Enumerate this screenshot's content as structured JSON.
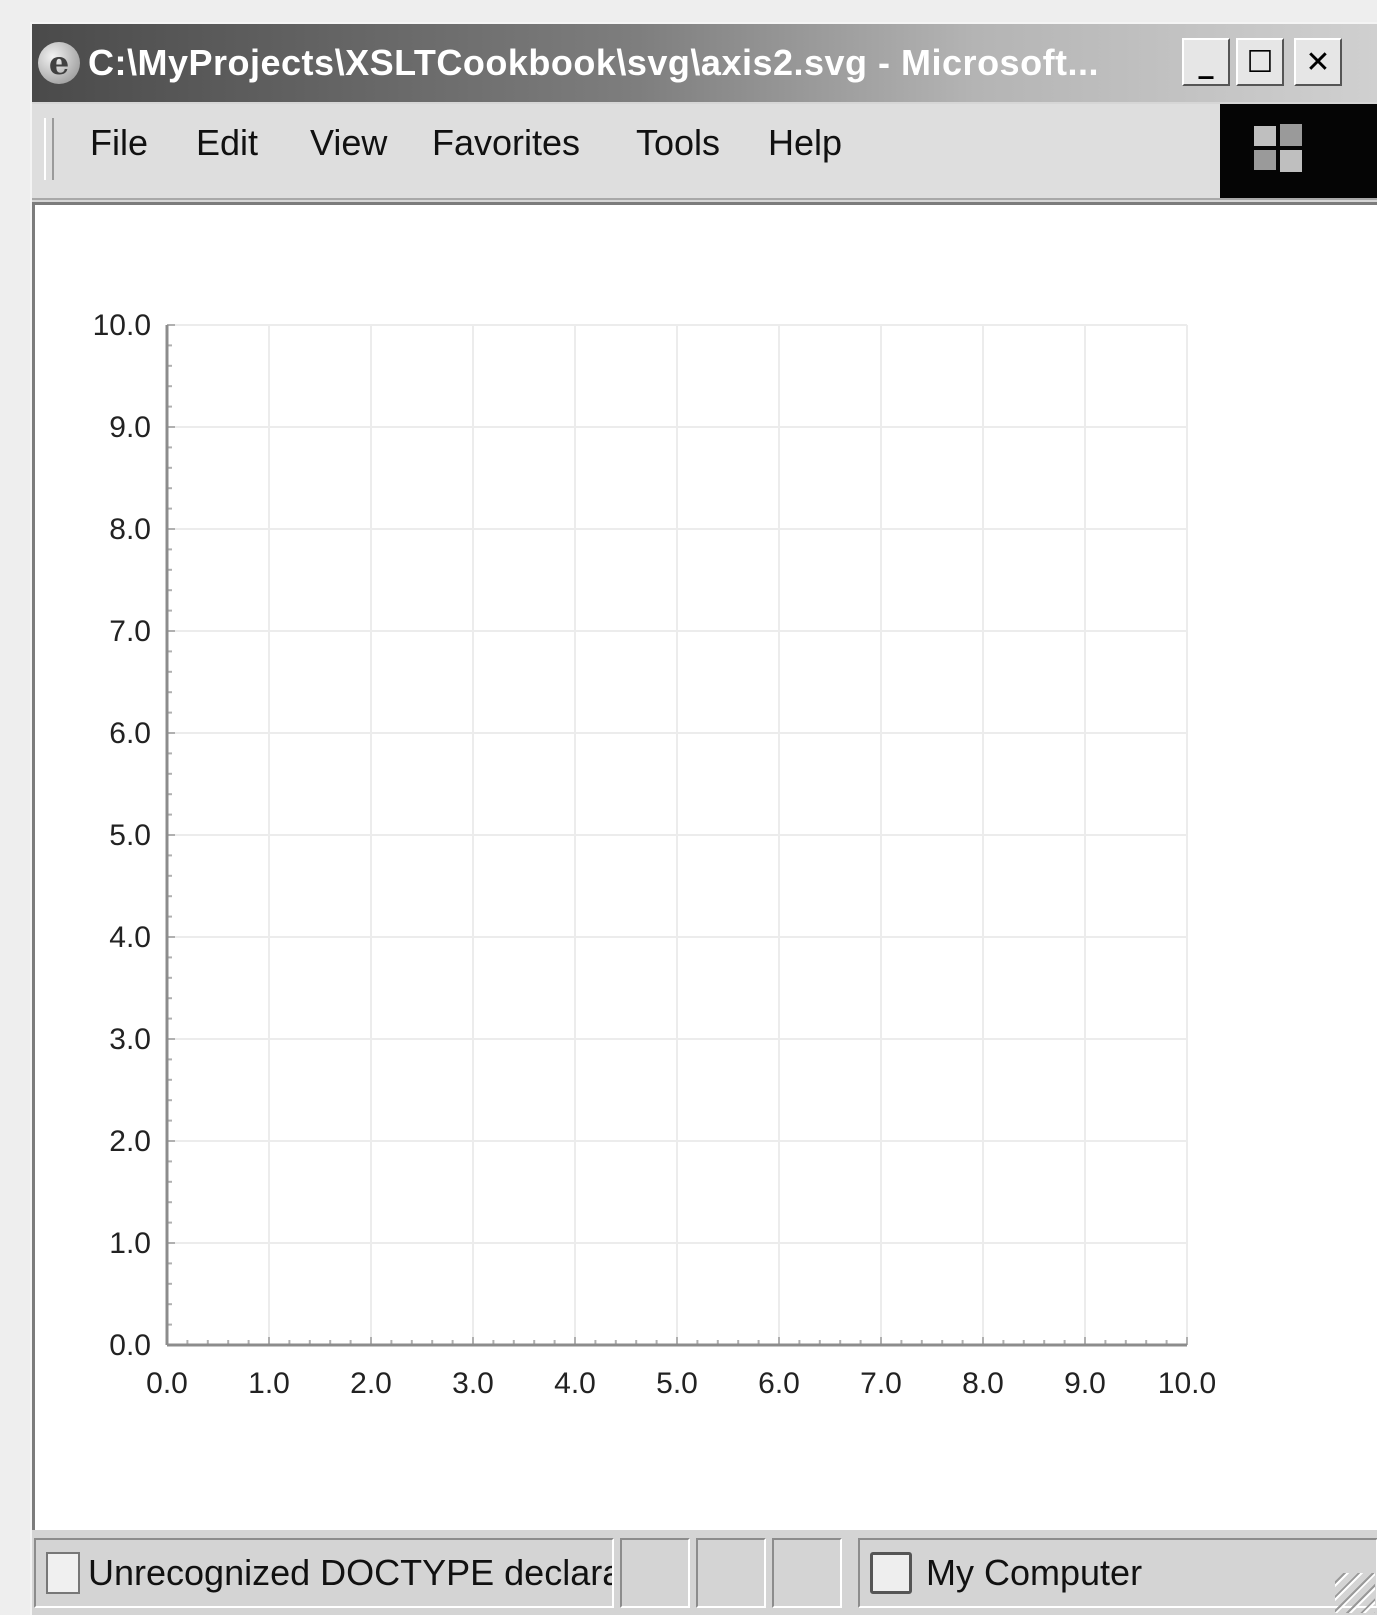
{
  "window": {
    "title": "C:\\MyProjects\\XSLTCookbook\\svg\\axis2.svg - Microsoft...",
    "minimize_glyph": "_",
    "maximize_glyph": "☐",
    "close_glyph": "✕"
  },
  "menu": {
    "items": [
      "File",
      "Edit",
      "View",
      "Favorites",
      "Tools",
      "Help"
    ]
  },
  "chart_data": {
    "type": "scatter",
    "title": "",
    "xlabel": "",
    "ylabel": "",
    "xlim": [
      0,
      10
    ],
    "ylim": [
      0,
      10
    ],
    "x_ticks": [
      "0.0",
      "1.0",
      "2.0",
      "3.0",
      "4.0",
      "5.0",
      "6.0",
      "7.0",
      "8.0",
      "9.0",
      "10.0"
    ],
    "y_ticks": [
      "0.0",
      "1.0",
      "2.0",
      "3.0",
      "4.0",
      "5.0",
      "6.0",
      "7.0",
      "8.0",
      "9.0",
      "10.0"
    ],
    "grid": true,
    "minor_ticks_per_unit": 5,
    "series": []
  },
  "status": {
    "message": "Unrecognized DOCTYPE declarat",
    "zone": "My Computer"
  },
  "colors": {
    "grid": "#ececec",
    "axis": "#8c8c8c",
    "tick_label": "#222222"
  }
}
